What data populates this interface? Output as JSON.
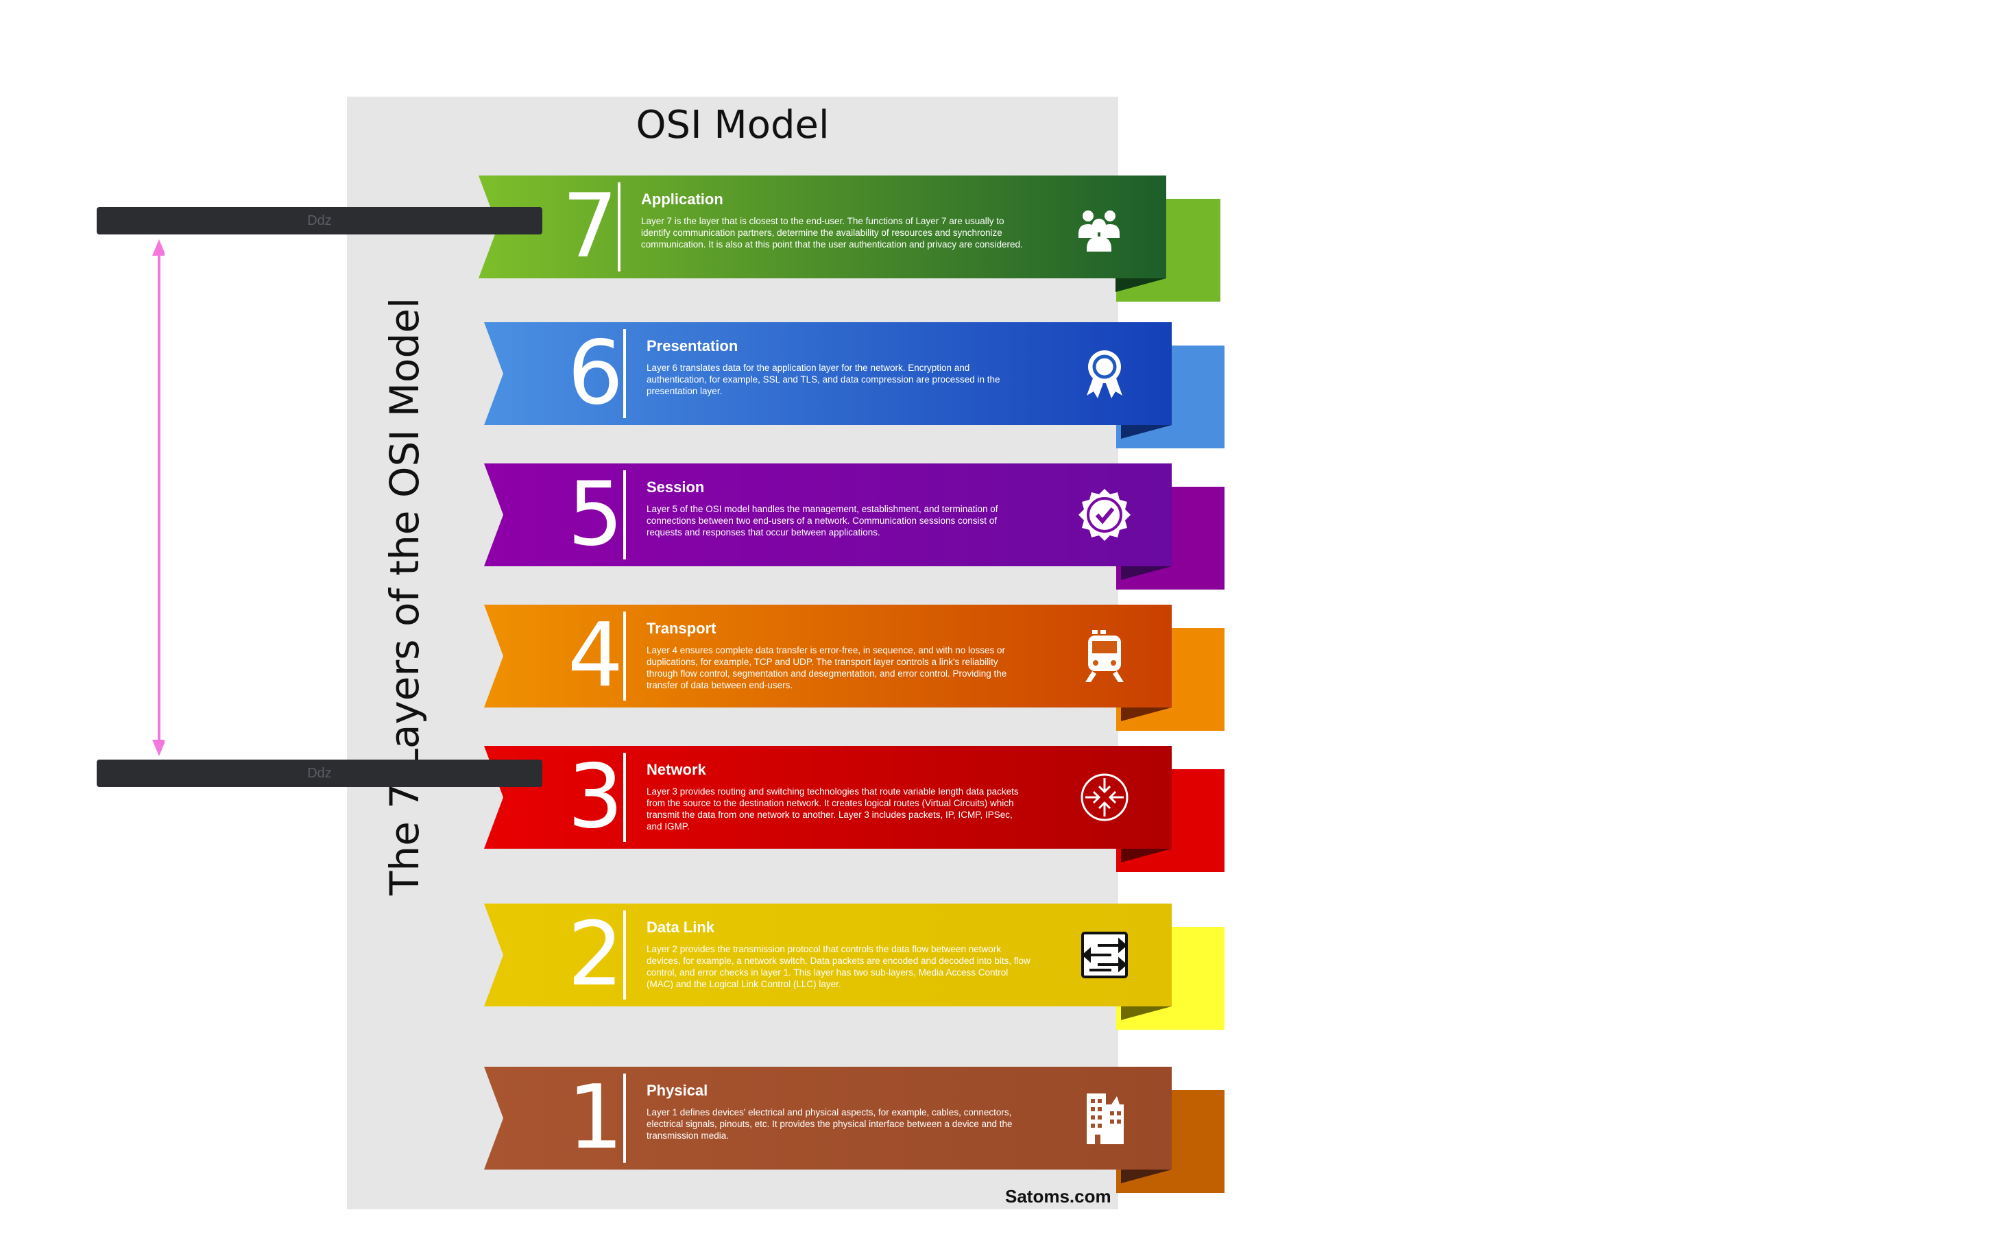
{
  "title": "OSI Model",
  "side_title": "The 7 Layers of the OSI Model",
  "credit": "Satoms.com",
  "overlay": {
    "bar_top_label": "Ddz",
    "bar_bottom_label": "Ddz",
    "arrow_color": "#f377dc"
  },
  "layers": [
    {
      "number": "7",
      "name": "Application",
      "icon": "users-icon",
      "description": "Layer 7 is the layer that is closest to the end-user. The functions of Layer 7 are usually to identify communication partners, determine the availability of resources and synchronize communication. It is also at this point that the user authentication and privacy are considered.",
      "colors": {
        "start": "#7dbe2a",
        "end": "#1d5e2a",
        "tail": "#74b82a",
        "fold": "#0f3a15"
      }
    },
    {
      "number": "6",
      "name": "Presentation",
      "icon": "award-ribbon-icon",
      "description": "Layer 6 translates data for the application layer for the network. Encryption and authentication, for example, SSL and TLS, and data compression are processed in the presentation layer.",
      "colors": {
        "start": "#4a90e2",
        "end": "#1440b8",
        "tail": "#4a8fdf",
        "fold": "#0d2a6e"
      }
    },
    {
      "number": "5",
      "name": "Session",
      "icon": "verified-badge-icon",
      "description": "Layer 5 of the OSI model handles the management, establishment, and termination of connections between two end-users of a network. Communication sessions consist of requests and responses that occur between applications.",
      "colors": {
        "start": "#8e00a8",
        "end": "#6a0aa0",
        "tail": "#8a0099",
        "fold": "#3a0755"
      }
    },
    {
      "number": "4",
      "name": "Transport",
      "icon": "train-icon",
      "description": "Layer 4 ensures complete data transfer is error-free, in sequence, and with no losses or duplications, for example, TCP and UDP. The transport layer controls a link's reliability through flow control, segmentation and desegmentation, and error control. Providing the transfer of data between end-users.",
      "colors": {
        "start": "#f09000",
        "end": "#c94000",
        "tail": "#ef8a00",
        "fold": "#6e2600"
      }
    },
    {
      "number": "3",
      "name": "Network",
      "icon": "router-icon",
      "description": "Layer 3 provides routing and switching technologies that route variable length data packets from the source to the destination network. It creates logical routes (Virtual Circuits) which transmit the data from one network to another. Layer 3 includes packets, IP, ICMP, IPSec, and IGMP.",
      "colors": {
        "start": "#e80000",
        "end": "#b00000",
        "tail": "#e00000",
        "fold": "#5e0000"
      }
    },
    {
      "number": "2",
      "name": "Data Link",
      "icon": "network-switch-icon",
      "description": "Layer 2 provides the transmission protocol that controls the data flow between network devices, for example, a network switch. Data packets are encoded and decoded into bits, flow control, and error checks in layer 1. This layer has two sub-layers, Media Access Control (MAC) and the Logical Link Control (LLC) layer.",
      "colors": {
        "start": "#e8c800",
        "end": "#e0c000",
        "tail": "#ffff33",
        "fold": "#6f6a00"
      }
    },
    {
      "number": "1",
      "name": "Physical",
      "icon": "building-icon",
      "description": "Layer 1 defines devices' electrical and physical aspects, for example, cables, connectors, electrical signals, pinouts, etc. It provides the physical interface between a device and the transmission media.",
      "colors": {
        "start": "#a85530",
        "end": "#9a4a28",
        "tail": "#c06000",
        "fold": "#4a200e"
      }
    }
  ]
}
